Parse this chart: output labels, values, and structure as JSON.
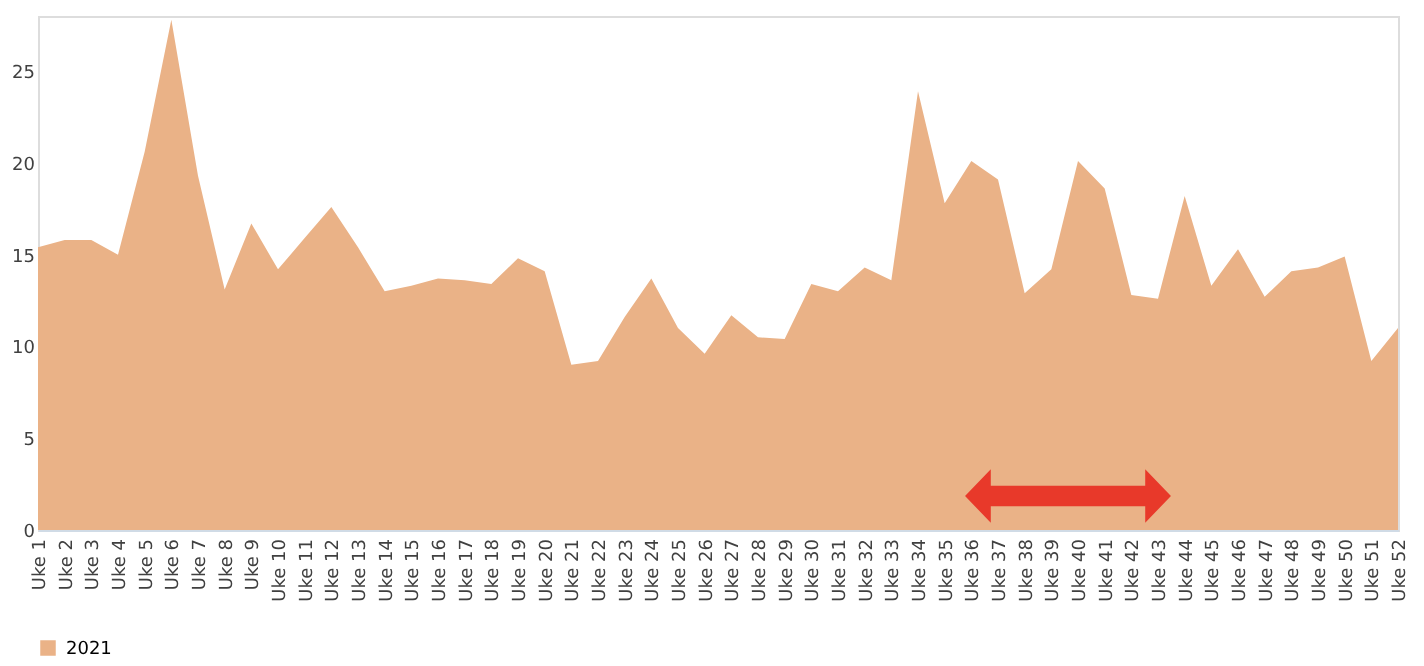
{
  "chart_data": {
    "type": "area",
    "categories": [
      "Uke 1",
      "Uke 2",
      "Uke 3",
      "Uke 4",
      "Uke 5",
      "Uke 6",
      "Uke 7",
      "Uke 8",
      "Uke 9",
      "Uke 10",
      "Uke 11",
      "Uke 12",
      "Uke 13",
      "Uke 14",
      "Uke 15",
      "Uke 16",
      "Uke 17",
      "Uke 18",
      "Uke 19",
      "Uke 20",
      "Uke 21",
      "Uke 22",
      "Uke 23",
      "Uke 24",
      "Uke 25",
      "Uke 26",
      "Uke 27",
      "Uke 28",
      "Uke 29",
      "Uke 30",
      "Uke 31",
      "Uke 32",
      "Uke 33",
      "Uke 34",
      "Uke 35",
      "Uke 36",
      "Uke 37",
      "Uke 38",
      "Uke 39",
      "Uke 40",
      "Uke 41",
      "Uke 42",
      "Uke 43",
      "Uke 44",
      "Uke 45",
      "Uke 46",
      "Uke 47",
      "Uke 48",
      "Uke 49",
      "Uke 50",
      "Uke 51",
      "Uke 52"
    ],
    "series": [
      {
        "name": "2021",
        "color": "#eab287",
        "values": [
          15.4,
          15.8,
          15.8,
          15.0,
          20.6,
          27.8,
          19.3,
          13.1,
          16.7,
          14.2,
          15.9,
          17.6,
          15.4,
          13.0,
          13.3,
          13.7,
          13.6,
          13.4,
          14.8,
          14.1,
          9.0,
          9.2,
          11.6,
          13.7,
          11.0,
          9.6,
          11.7,
          10.5,
          10.4,
          13.4,
          13.0,
          14.3,
          13.6,
          23.9,
          17.8,
          20.1,
          19.1,
          12.9,
          14.2,
          20.1,
          18.6,
          12.8,
          12.6,
          18.2,
          13.3,
          15.3,
          12.7,
          14.1,
          14.3,
          14.9,
          9.2,
          11.0
        ]
      }
    ],
    "ylim": [
      0,
      28
    ],
    "yticks": [
      0,
      5,
      10,
      15,
      20,
      25
    ],
    "grid": false,
    "legend": "bottom"
  }
}
